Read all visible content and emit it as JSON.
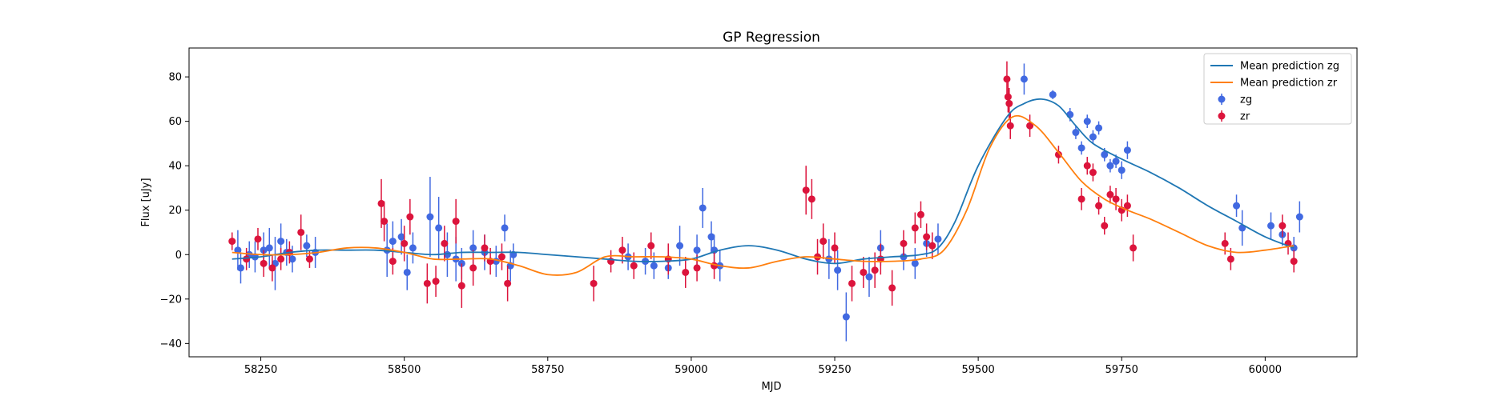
{
  "chart_data": {
    "type": "scatter",
    "title": "GP Regression",
    "xlabel": "MJD",
    "ylabel": "Flux [uJy]",
    "xlim": [
      58125,
      60160
    ],
    "ylim": [
      -46,
      93
    ],
    "xticks": [
      58250,
      58500,
      58750,
      59000,
      59250,
      59500,
      59750,
      60000
    ],
    "yticks": [
      -40,
      -20,
      0,
      20,
      40,
      60,
      80
    ],
    "grid": false,
    "legend_position": "top-right",
    "lines": [
      {
        "name": "Mean prediction zg",
        "color": "#1f77b4",
        "x": [
          58200,
          58250,
          58300,
          58350,
          58400,
          58450,
          58500,
          58550,
          58600,
          58650,
          58700,
          58750,
          58800,
          58850,
          58900,
          58950,
          59000,
          59050,
          59100,
          59150,
          59200,
          59250,
          59300,
          59350,
          59400,
          59430,
          59460,
          59500,
          59550,
          59580,
          59610,
          59640,
          59670,
          59700,
          59750,
          59800,
          59850,
          59900,
          59950,
          60000,
          60050
        ],
        "y": [
          -2,
          -1,
          1,
          2,
          2,
          2,
          1,
          0,
          1,
          1,
          1,
          0,
          -1,
          -2,
          -3,
          -3,
          -2,
          2,
          4,
          2,
          -2,
          -4,
          -2,
          -1,
          0,
          3,
          15,
          40,
          62,
          68,
          70,
          67,
          58,
          50,
          43,
          37,
          30,
          22,
          15,
          8,
          3
        ]
      },
      {
        "name": "Mean prediction zr",
        "color": "#ff7f0e",
        "x": [
          58200,
          58250,
          58300,
          58350,
          58400,
          58450,
          58500,
          58550,
          58600,
          58650,
          58700,
          58750,
          58800,
          58850,
          58900,
          58950,
          59000,
          59050,
          59100,
          59150,
          59200,
          59250,
          59300,
          59350,
          59400,
          59440,
          59480,
          59520,
          59560,
          59600,
          59640,
          59680,
          59720,
          59760,
          59800,
          59850,
          59900,
          59950,
          60000,
          60050
        ],
        "y": [
          1,
          0,
          0,
          1,
          3,
          3,
          1,
          -2,
          -2,
          -2,
          -5,
          -9,
          -8,
          -1,
          -1,
          -1,
          -2,
          -5,
          -6,
          -3,
          -1,
          -2,
          -3,
          -3,
          -2,
          2,
          20,
          48,
          62,
          58,
          46,
          33,
          25,
          20,
          16,
          10,
          4,
          1,
          2,
          4
        ]
      }
    ],
    "series": [
      {
        "name": "zg",
        "color": "#4169e1",
        "x": [
          58210,
          58215,
          58230,
          58240,
          58255,
          58265,
          58275,
          58285,
          58295,
          58305,
          58330,
          58345,
          58470,
          58480,
          58495,
          58505,
          58515,
          58545,
          58560,
          58575,
          58590,
          58600,
          58620,
          58640,
          58660,
          58675,
          58685,
          58690,
          58890,
          58920,
          58935,
          58960,
          58980,
          59010,
          59020,
          59035,
          59040,
          59050,
          59240,
          59255,
          59270,
          59310,
          59330,
          59370,
          59390,
          59410,
          59430,
          59580,
          59630,
          59660,
          59670,
          59680,
          59690,
          59700,
          59710,
          59720,
          59730,
          59740,
          59750,
          59760,
          59950,
          59960,
          60010,
          60030,
          60050,
          60060
        ],
        "y": [
          2,
          -6,
          0,
          -1,
          2,
          3,
          -4,
          6,
          1,
          -2,
          4,
          1,
          2,
          6,
          8,
          -8,
          3,
          17,
          12,
          0,
          -2,
          -4,
          3,
          1,
          -3,
          12,
          -5,
          0,
          -1,
          -3,
          -5,
          -6,
          4,
          2,
          21,
          8,
          2,
          -5,
          -2,
          -7,
          -28,
          -10,
          3,
          -1,
          -4,
          5,
          7,
          79,
          72,
          63,
          55,
          48,
          60,
          53,
          57,
          45,
          40,
          42,
          38,
          47,
          22,
          12,
          13,
          9,
          3,
          17
        ],
        "yerr": [
          9,
          7,
          6,
          7,
          8,
          9,
          12,
          8,
          6,
          6,
          5,
          7,
          12,
          9,
          8,
          8,
          7,
          18,
          14,
          10,
          10,
          7,
          8,
          8,
          7,
          6,
          7,
          5,
          6,
          6,
          6,
          5,
          9,
          7,
          9,
          7,
          7,
          7,
          9,
          9,
          11,
          9,
          8,
          6,
          7,
          6,
          7,
          7,
          2,
          3,
          3,
          3,
          3,
          3,
          3,
          3,
          3,
          3,
          4,
          4,
          5,
          8,
          6,
          5,
          5,
          7
        ]
      },
      {
        "name": "zr",
        "color": "#dc143c",
        "x": [
          58200,
          58225,
          58245,
          58255,
          58270,
          58285,
          58300,
          58320,
          58335,
          58460,
          58465,
          58480,
          58500,
          58510,
          58540,
          58555,
          58570,
          58590,
          58600,
          58620,
          58640,
          58650,
          58670,
          58680,
          58830,
          58860,
          58880,
          58900,
          58930,
          58960,
          58990,
          59010,
          59040,
          59200,
          59210,
          59220,
          59230,
          59250,
          59280,
          59300,
          59320,
          59330,
          59350,
          59370,
          59390,
          59400,
          59410,
          59420,
          59550,
          59552,
          59554,
          59556,
          59590,
          59640,
          59680,
          59690,
          59700,
          59710,
          59720,
          59730,
          59740,
          59750,
          59760,
          59770,
          59930,
          59940,
          60030,
          60040,
          60050
        ],
        "y": [
          6,
          -2,
          7,
          -4,
          -6,
          -2,
          1,
          10,
          -2,
          23,
          15,
          -3,
          5,
          17,
          -13,
          -12,
          5,
          15,
          -14,
          -6,
          3,
          -3,
          -1,
          -13,
          -13,
          -3,
          2,
          -5,
          4,
          -2,
          -8,
          -6,
          -5,
          29,
          25,
          -1,
          6,
          3,
          -13,
          -8,
          -7,
          -2,
          -15,
          5,
          12,
          18,
          8,
          4,
          79,
          71,
          68,
          58,
          58,
          45,
          25,
          40,
          37,
          22,
          13,
          27,
          25,
          20,
          22,
          3,
          5,
          -2,
          13,
          5,
          -3
        ],
        "yerr": [
          4,
          5,
          5,
          6,
          6,
          5,
          5,
          8,
          4,
          11,
          9,
          6,
          8,
          8,
          9,
          7,
          8,
          10,
          10,
          8,
          6,
          6,
          6,
          8,
          8,
          5,
          6,
          6,
          6,
          7,
          7,
          6,
          6,
          11,
          9,
          8,
          8,
          7,
          8,
          7,
          8,
          7,
          8,
          6,
          7,
          6,
          6,
          6,
          8,
          7,
          7,
          6,
          5,
          4,
          5,
          4,
          4,
          4,
          4,
          4,
          5,
          5,
          5,
          6,
          5,
          5,
          5,
          5,
          5
        ]
      }
    ]
  }
}
